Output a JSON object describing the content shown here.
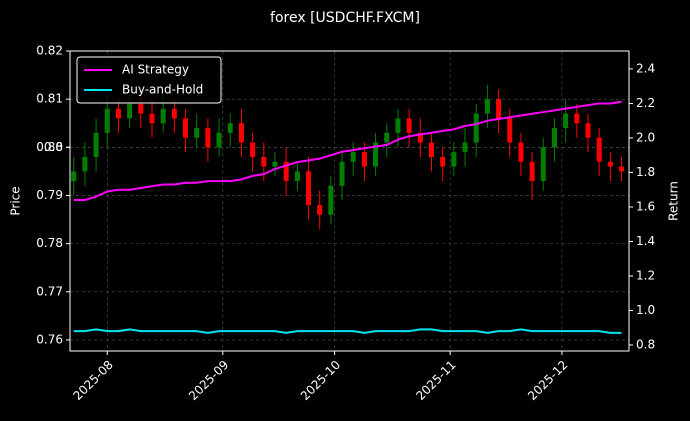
{
  "chart_data": {
    "type": "candlestick",
    "title": "forex [USDCHF.FXCM]",
    "ylabel": "Price",
    "y2label": "Return",
    "x": [
      1,
      4,
      7,
      10,
      13,
      16,
      19,
      22,
      25,
      28,
      31,
      34,
      37,
      40,
      43,
      46,
      49,
      52,
      55,
      58,
      61,
      64,
      67,
      70,
      73,
      76,
      79,
      82,
      85,
      88,
      91,
      94,
      97,
      100,
      103,
      106,
      109,
      112,
      115,
      118,
      121,
      124,
      127,
      130,
      133,
      136,
      139,
      142,
      145,
      148
    ],
    "open": [
      0.793,
      0.795,
      0.798,
      0.803,
      0.808,
      0.806,
      0.809,
      0.807,
      0.805,
      0.808,
      0.806,
      0.802,
      0.804,
      0.8,
      0.803,
      0.805,
      0.801,
      0.798,
      0.796,
      0.797,
      0.793,
      0.795,
      0.788,
      0.786,
      0.792,
      0.797,
      0.799,
      0.796,
      0.801,
      0.803,
      0.806,
      0.803,
      0.801,
      0.798,
      0.796,
      0.799,
      0.801,
      0.807,
      0.81,
      0.806,
      0.801,
      0.797,
      0.793,
      0.8,
      0.804,
      0.807,
      0.805,
      0.802,
      0.797,
      0.796
    ],
    "high": [
      0.798,
      0.801,
      0.806,
      0.811,
      0.81,
      0.811,
      0.811,
      0.81,
      0.811,
      0.81,
      0.808,
      0.807,
      0.806,
      0.806,
      0.807,
      0.808,
      0.803,
      0.801,
      0.799,
      0.8,
      0.797,
      0.798,
      0.791,
      0.794,
      0.799,
      0.801,
      0.801,
      0.803,
      0.805,
      0.808,
      0.808,
      0.806,
      0.803,
      0.8,
      0.801,
      0.804,
      0.809,
      0.813,
      0.812,
      0.808,
      0.803,
      0.799,
      0.802,
      0.806,
      0.81,
      0.809,
      0.807,
      0.804,
      0.799,
      0.798
    ],
    "low": [
      0.79,
      0.792,
      0.795,
      0.8,
      0.803,
      0.804,
      0.804,
      0.802,
      0.803,
      0.803,
      0.799,
      0.8,
      0.797,
      0.798,
      0.8,
      0.798,
      0.795,
      0.793,
      0.794,
      0.79,
      0.791,
      0.785,
      0.783,
      0.784,
      0.789,
      0.794,
      0.793,
      0.794,
      0.798,
      0.8,
      0.8,
      0.798,
      0.795,
      0.793,
      0.794,
      0.796,
      0.798,
      0.804,
      0.803,
      0.798,
      0.794,
      0.789,
      0.791,
      0.797,
      0.801,
      0.802,
      0.799,
      0.794,
      0.793,
      0.793
    ],
    "close": [
      0.795,
      0.798,
      0.803,
      0.808,
      0.806,
      0.809,
      0.807,
      0.805,
      0.808,
      0.806,
      0.802,
      0.804,
      0.8,
      0.803,
      0.805,
      0.801,
      0.798,
      0.796,
      0.797,
      0.793,
      0.795,
      0.788,
      0.786,
      0.792,
      0.797,
      0.799,
      0.796,
      0.801,
      0.803,
      0.806,
      0.803,
      0.801,
      0.798,
      0.796,
      0.799,
      0.801,
      0.807,
      0.81,
      0.806,
      0.801,
      0.797,
      0.793,
      0.8,
      0.804,
      0.807,
      0.805,
      0.802,
      0.797,
      0.796,
      0.795
    ],
    "up_color": "#008000",
    "down_color": "#ff0000",
    "series": [
      {
        "name": "AI Strategy",
        "color": "#ff00ff",
        "axis": "y2",
        "values": [
          1.64,
          1.64,
          1.66,
          1.69,
          1.7,
          1.7,
          1.71,
          1.72,
          1.73,
          1.73,
          1.74,
          1.74,
          1.75,
          1.75,
          1.75,
          1.76,
          1.78,
          1.79,
          1.82,
          1.84,
          1.86,
          1.87,
          1.88,
          1.9,
          1.92,
          1.93,
          1.94,
          1.95,
          1.96,
          1.99,
          2.01,
          2.02,
          2.03,
          2.04,
          2.05,
          2.07,
          2.08,
          2.1,
          2.11,
          2.12,
          2.13,
          2.14,
          2.15,
          2.16,
          2.17,
          2.18,
          2.19,
          2.2,
          2.2,
          2.21
        ]
      },
      {
        "name": "Buy-and-Hold",
        "color": "#00e5ee",
        "axis": "y2",
        "values": [
          0.88,
          0.88,
          0.89,
          0.88,
          0.88,
          0.89,
          0.88,
          0.88,
          0.88,
          0.88,
          0.88,
          0.88,
          0.87,
          0.88,
          0.88,
          0.88,
          0.88,
          0.88,
          0.88,
          0.87,
          0.88,
          0.88,
          0.88,
          0.88,
          0.88,
          0.88,
          0.87,
          0.88,
          0.88,
          0.88,
          0.88,
          0.89,
          0.89,
          0.88,
          0.88,
          0.88,
          0.88,
          0.87,
          0.88,
          0.88,
          0.89,
          0.88,
          0.88,
          0.88,
          0.88,
          0.88,
          0.88,
          0.88,
          0.87,
          0.87
        ]
      }
    ],
    "xlim": [
      0,
      150
    ],
    "xticks": [
      {
        "value": 10,
        "label": "2025-08"
      },
      {
        "value": 41,
        "label": "2025-09"
      },
      {
        "value": 71,
        "label": "2025-10"
      },
      {
        "value": 102,
        "label": "2025-11"
      },
      {
        "value": 132,
        "label": "2025-12"
      }
    ],
    "ylim": [
      0.7577,
      0.82
    ],
    "yticks": [
      0.76,
      0.77,
      0.78,
      0.79,
      0.8,
      {
        "value": 0.8,
        "label": "0.80"
      },
      0.81,
      0.82
    ],
    "y2lim": [
      0.765,
      2.504
    ],
    "y2ticks": [
      0.8,
      {
        "value": 1,
        "label": "1.0"
      },
      1.2,
      1.4,
      1.6,
      1.8,
      {
        "value": 2,
        "label": "2.0"
      },
      2.2,
      2.4
    ],
    "grid": true,
    "legend": "upper left"
  }
}
